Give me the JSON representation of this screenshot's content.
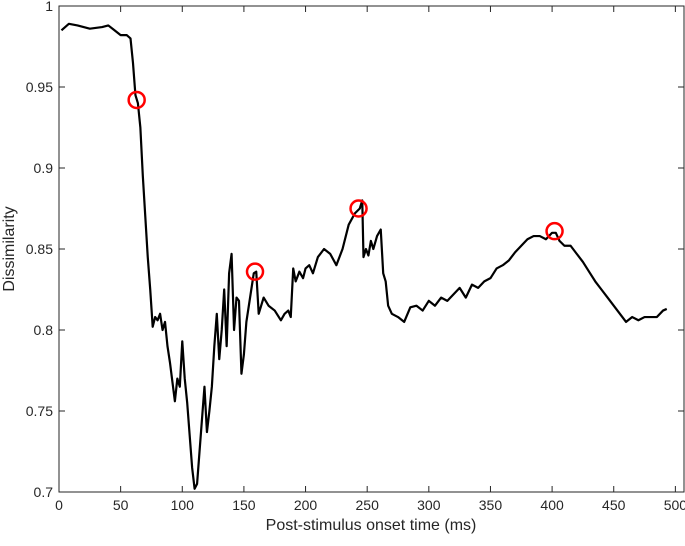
{
  "chart_data": {
    "type": "line",
    "xlabel": "Post-stimulus onset time (ms)",
    "ylabel": "Dissimilarity",
    "x": [
      2,
      8,
      15,
      25,
      35,
      40,
      45,
      50,
      55,
      58,
      60,
      62,
      64,
      66,
      68,
      70,
      72,
      74,
      76,
      78,
      80,
      82,
      84,
      86,
      88,
      90,
      92,
      94,
      96,
      98,
      100,
      102,
      104,
      106,
      108,
      110,
      112,
      114,
      116,
      118,
      120,
      122,
      124,
      126,
      128,
      130,
      132,
      134,
      136,
      138,
      140,
      142,
      144,
      146,
      148,
      150,
      152,
      155,
      158,
      160,
      162,
      164,
      166,
      170,
      175,
      180,
      183,
      186,
      188,
      190,
      192,
      195,
      198,
      200,
      203,
      206,
      210,
      215,
      220,
      225,
      230,
      235,
      240,
      244,
      246,
      247,
      249,
      251,
      253,
      255,
      258,
      261,
      263,
      265,
      267,
      270,
      275,
      280,
      285,
      290,
      295,
      300,
      305,
      310,
      315,
      320,
      325,
      330,
      335,
      340,
      345,
      350,
      355,
      360,
      365,
      370,
      375,
      380,
      385,
      390,
      395,
      400,
      403,
      406,
      410,
      415,
      420,
      425,
      430,
      435,
      440,
      445,
      450,
      455,
      460,
      465,
      470,
      475,
      480,
      485,
      490,
      493
    ],
    "values": [
      0.985,
      0.989,
      0.988,
      0.986,
      0.987,
      0.988,
      0.985,
      0.982,
      0.982,
      0.98,
      0.965,
      0.945,
      0.94,
      0.925,
      0.895,
      0.87,
      0.845,
      0.825,
      0.802,
      0.808,
      0.806,
      0.81,
      0.8,
      0.805,
      0.79,
      0.78,
      0.768,
      0.756,
      0.77,
      0.765,
      0.793,
      0.77,
      0.755,
      0.735,
      0.715,
      0.702,
      0.705,
      0.725,
      0.745,
      0.765,
      0.737,
      0.75,
      0.765,
      0.79,
      0.81,
      0.782,
      0.8,
      0.825,
      0.79,
      0.835,
      0.847,
      0.8,
      0.82,
      0.818,
      0.773,
      0.785,
      0.805,
      0.82,
      0.835,
      0.836,
      0.81,
      0.815,
      0.82,
      0.815,
      0.812,
      0.806,
      0.81,
      0.812,
      0.808,
      0.838,
      0.83,
      0.836,
      0.832,
      0.838,
      0.84,
      0.835,
      0.845,
      0.85,
      0.847,
      0.84,
      0.85,
      0.865,
      0.872,
      0.875,
      0.88,
      0.845,
      0.85,
      0.846,
      0.855,
      0.85,
      0.858,
      0.862,
      0.835,
      0.83,
      0.815,
      0.81,
      0.808,
      0.805,
      0.814,
      0.815,
      0.812,
      0.818,
      0.815,
      0.82,
      0.818,
      0.822,
      0.826,
      0.82,
      0.828,
      0.826,
      0.83,
      0.832,
      0.838,
      0.84,
      0.843,
      0.848,
      0.852,
      0.856,
      0.858,
      0.858,
      0.856,
      0.86,
      0.86,
      0.855,
      0.852,
      0.852,
      0.847,
      0.842,
      0.836,
      0.83,
      0.825,
      0.82,
      0.815,
      0.81,
      0.805,
      0.808,
      0.806,
      0.808,
      0.808,
      0.808,
      0.812,
      0.813
    ],
    "color": "#000000",
    "marker_x": [
      63,
      159,
      243,
      402
    ],
    "marker_values": [
      0.942,
      0.836,
      0.875,
      0.861
    ],
    "marker_color": "#ff0000",
    "xlim": [
      0,
      507
    ],
    "xticks": [
      0,
      50,
      100,
      150,
      200,
      250,
      300,
      350,
      400,
      450,
      500
    ],
    "ylim": [
      0.7,
      1
    ],
    "yticks": [
      0.7,
      0.75,
      0.8,
      0.85,
      0.9,
      0.95,
      1
    ]
  }
}
